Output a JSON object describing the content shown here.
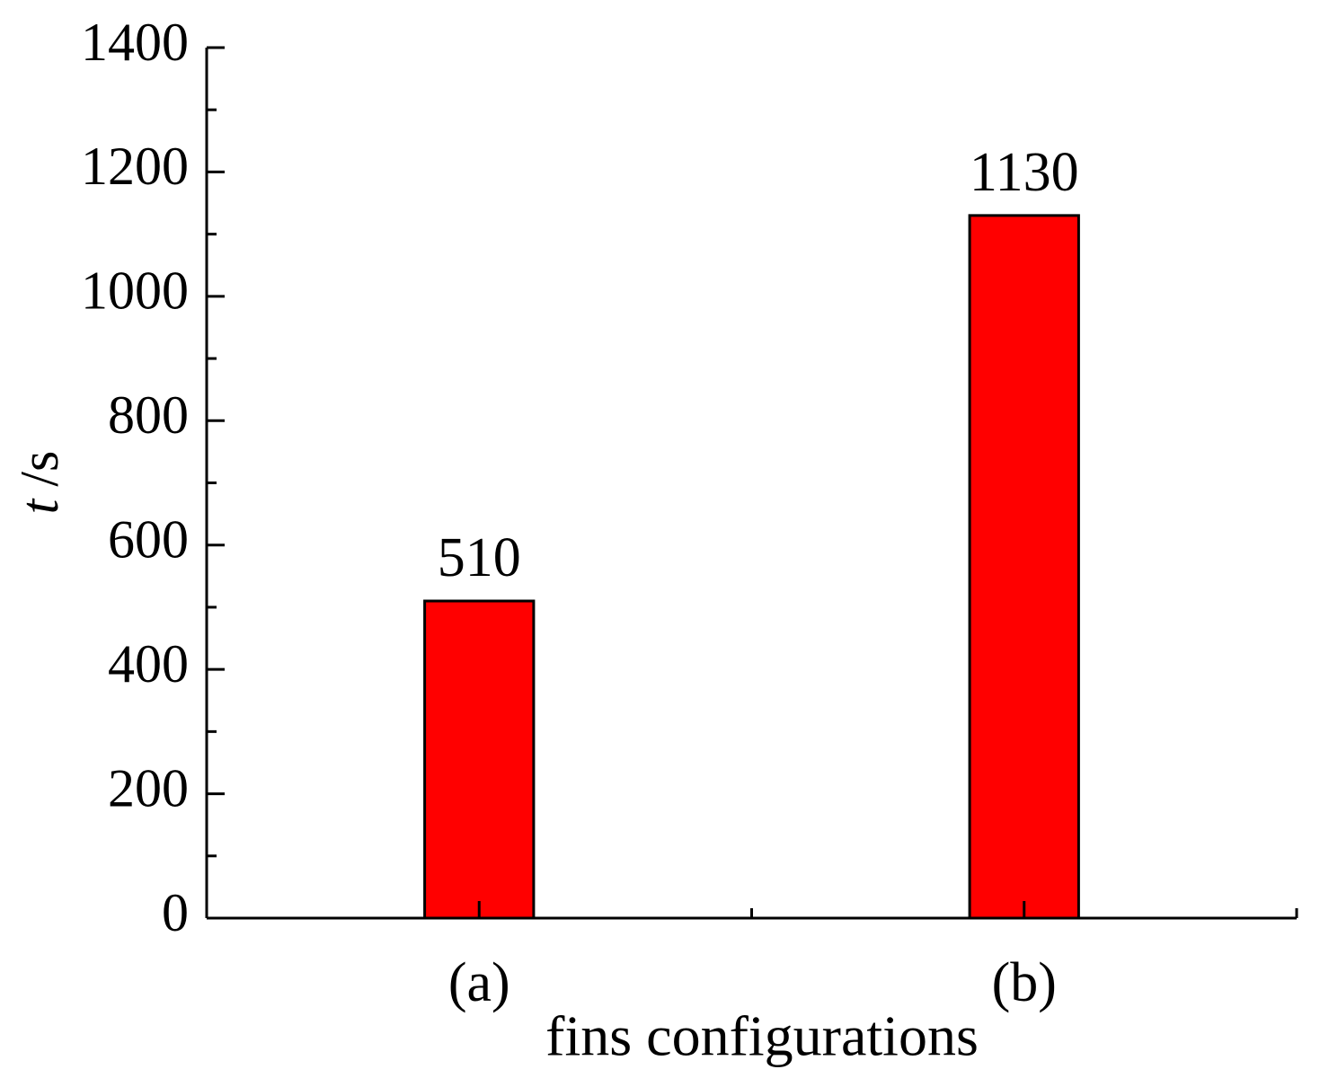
{
  "chart_data": {
    "type": "bar",
    "categories": [
      "(a)",
      "(b)"
    ],
    "values": [
      510,
      1130
    ],
    "color": "#ff0000",
    "xlabel": "fins configurations",
    "ylabel": {
      "symbol": "t",
      "unit": "/s"
    },
    "ylim": [
      0,
      1400
    ],
    "yticks": [
      0,
      200,
      400,
      600,
      800,
      1000,
      1200,
      1400
    ],
    "minor_yticks": [
      100,
      300,
      500,
      700,
      900,
      1100,
      1300
    ]
  }
}
